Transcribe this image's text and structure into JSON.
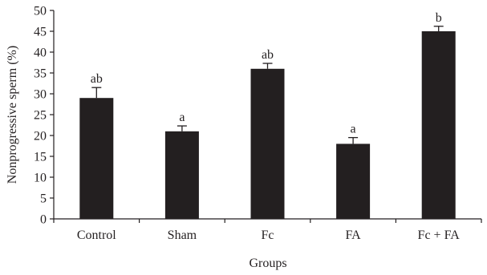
{
  "chart_data": {
    "type": "bar",
    "categories": [
      "Control",
      "Sham",
      "Fc",
      "FA",
      "Fc + FA"
    ],
    "values": [
      29,
      21,
      36,
      18,
      45
    ],
    "errors": [
      2.5,
      1.3,
      1.3,
      1.5,
      1.2
    ],
    "significance_labels": [
      "ab",
      "a",
      "ab",
      "a",
      "b"
    ],
    "xlabel": "Groups",
    "ylabel": "Nonprogressive sperm (%)",
    "ylim": [
      0,
      50
    ],
    "yticks": [
      0,
      5,
      10,
      15,
      20,
      25,
      30,
      35,
      40,
      45,
      50
    ],
    "grid": false,
    "colors": {
      "bar": "#231f20",
      "axis": "#231f20"
    }
  }
}
